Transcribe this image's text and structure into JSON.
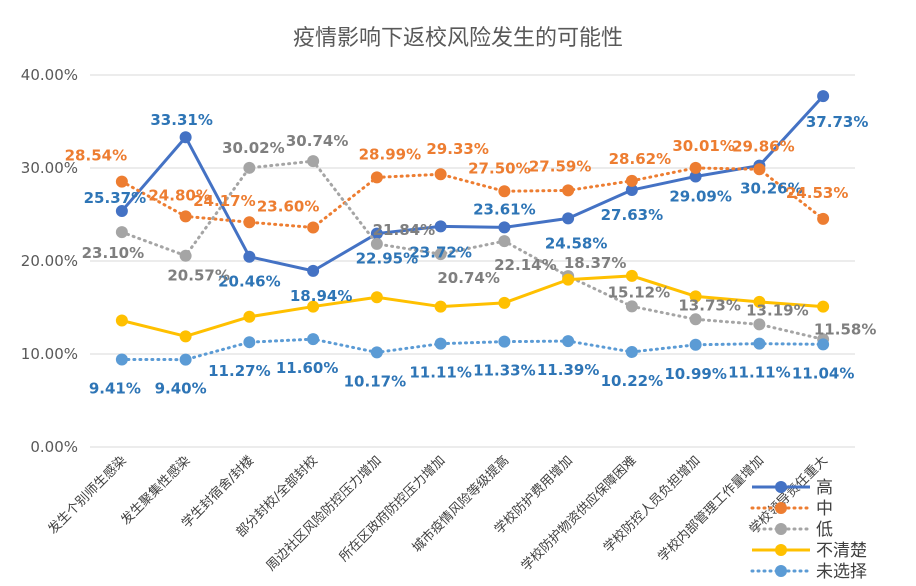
{
  "chart_data": {
    "type": "line",
    "title": "疫情影响下返校风险发生的可能性",
    "xlabel": "",
    "ylabel": "",
    "ylim": [
      0,
      40
    ],
    "yticks": [
      0,
      10,
      20,
      30,
      40
    ],
    "ytick_labels": [
      "0.00%",
      "10.00%",
      "20.00%",
      "30.00%",
      "40.00%"
    ],
    "grid": true,
    "legend_position": "bottom-right",
    "categories": [
      "发生个别师生感染",
      "发生聚集性感染",
      "学生封宿舍/封楼",
      "部分封校/全部封校",
      "周边社区风险防控压力增加",
      "所在区政府防控压力增加",
      "城市疫情风险等级提高",
      "学校防护费用增加",
      "学校防护物资供应保障困难",
      "学校防控人员负担增加",
      "学校内部管理工作量增加",
      "学校领导责任重大"
    ],
    "series": [
      {
        "name": "高",
        "color": "#4472C4",
        "line_style": "solid",
        "values": [
          25.37,
          33.31,
          20.46,
          18.94,
          22.95,
          23.72,
          23.61,
          24.58,
          27.63,
          29.09,
          30.26,
          37.73
        ],
        "labels": [
          "25.37%",
          "33.31%",
          "20.46%",
          "18.94%",
          "22.95%",
          "23.72%",
          "23.61%",
          "24.58%",
          "27.63%",
          "29.09%",
          "30.26%",
          "37.73%"
        ],
        "label_color": "#2E75B6"
      },
      {
        "name": "中",
        "color": "#ED7D31",
        "line_style": "dotted",
        "values": [
          28.54,
          24.8,
          24.17,
          23.6,
          28.99,
          29.33,
          27.5,
          27.59,
          28.62,
          30.01,
          29.86,
          24.53
        ],
        "labels": [
          "28.54%",
          "24.80%",
          "24.17%",
          "23.60%",
          "28.99%",
          "29.33%",
          "27.50%",
          "27.59%",
          "28.62%",
          "30.01%",
          "29.86%",
          "24.53%"
        ],
        "label_color": "#ED7D31"
      },
      {
        "name": "低",
        "color": "#A5A5A5",
        "line_style": "dotted",
        "values": [
          23.1,
          20.57,
          30.02,
          30.74,
          21.84,
          20.74,
          22.14,
          18.37,
          15.12,
          13.73,
          13.19,
          11.58
        ],
        "labels": [
          "23.10%",
          "20.57%",
          "30.02%",
          "30.74%",
          "21.84%",
          "20.74%",
          "22.14%",
          "18.37%",
          "15.12%",
          "13.73%",
          "13.19%",
          "11.58%"
        ],
        "label_color": "#7F7F7F"
      },
      {
        "name": "不清楚",
        "color": "#FFC000",
        "line_style": "solid",
        "values": [
          13.6,
          11.9,
          14.0,
          15.1,
          16.1,
          15.1,
          15.5,
          18.0,
          18.4,
          16.2,
          15.6,
          15.1
        ],
        "labels": [],
        "label_color": "#FFC000"
      },
      {
        "name": "未选择",
        "color": "#5B9BD5",
        "line_style": "dotted",
        "values": [
          9.41,
          9.4,
          11.27,
          11.6,
          10.17,
          11.11,
          11.33,
          11.39,
          10.22,
          10.99,
          11.11,
          11.04
        ],
        "labels": [
          "9.41%",
          "9.40%",
          "11.27%",
          "11.60%",
          "10.17%",
          "11.11%",
          "11.33%",
          "11.39%",
          "10.22%",
          "10.99%",
          "11.11%",
          "11.04%"
        ],
        "label_color": "#2E75B6"
      }
    ]
  }
}
